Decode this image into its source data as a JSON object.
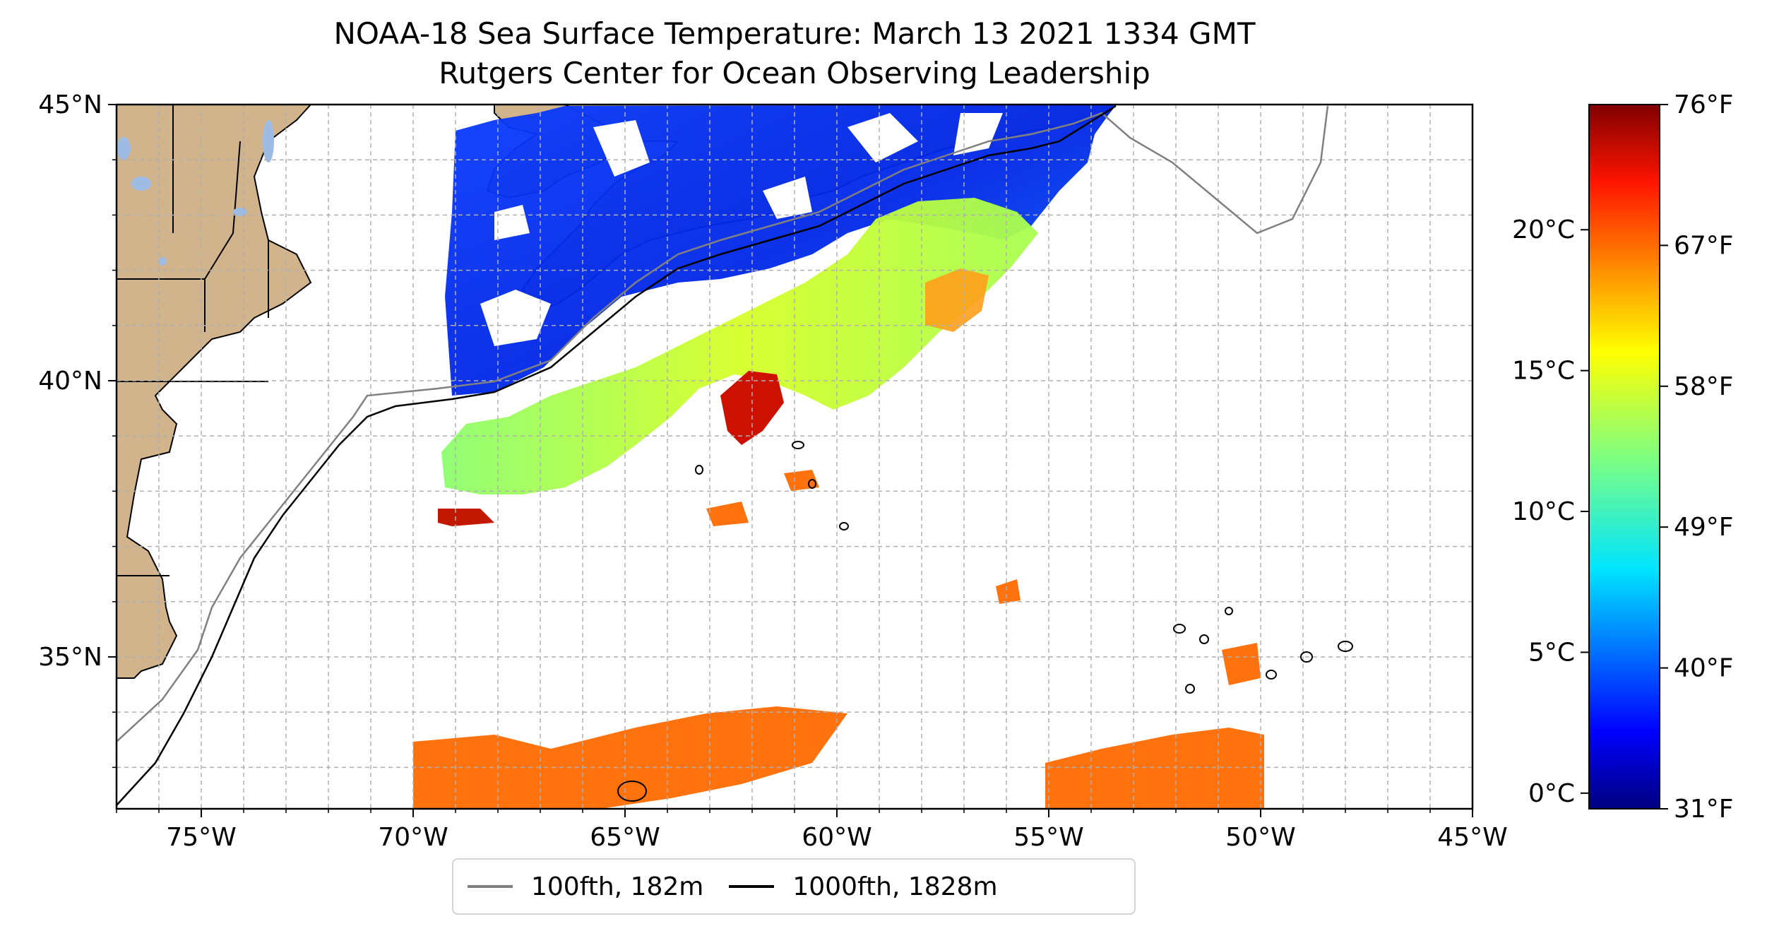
{
  "title": {
    "line1": "NOAA-18 Sea Surface Temperature: March 13 2021 1334 GMT",
    "line2": "Rutgers Center for Ocean Observing Leadership"
  },
  "map": {
    "projection": "equirectangular",
    "lon_range": [
      -77,
      -45
    ],
    "lat_range": [
      32.25,
      45
    ],
    "gridlines": true,
    "lon_ticks": [
      "75°W",
      "70°W",
      "65°W",
      "60°W",
      "55°W",
      "50°W",
      "45°W"
    ],
    "lat_ticks": [
      "35°N",
      "40°N",
      "45°N"
    ],
    "land_color": "#d2b48c",
    "water_body_color": "#9ebbe4"
  },
  "colorbar": {
    "celsius_ticks": [
      "0°C",
      "5°C",
      "10°C",
      "15°C",
      "20°C"
    ],
    "fahrenheit_ticks": [
      "31°F",
      "40°F",
      "49°F",
      "58°F",
      "67°F",
      "76°F"
    ],
    "colormap": "jet",
    "range_fahrenheit": [
      31,
      76
    ]
  },
  "legend": {
    "items": [
      {
        "label": "100fth, 182m",
        "color": "#808080"
      },
      {
        "label": "1000fth, 1828m",
        "color": "#000000"
      }
    ]
  }
}
